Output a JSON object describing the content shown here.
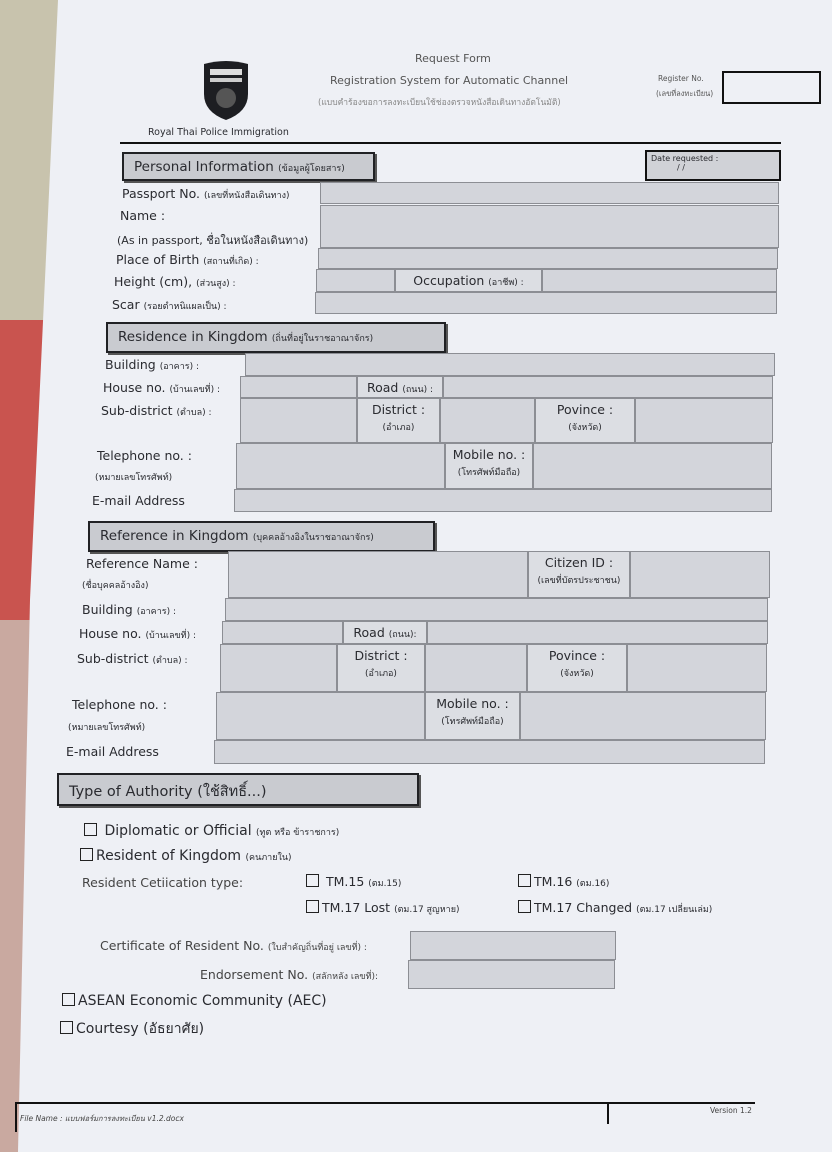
{
  "header": {
    "agency": "Royal Thai Police  Immigration",
    "title": "Request Form",
    "subtitle": "Registration System for Automatic Channel",
    "subtitle_th": "(แบบคำร้องขอการลงทะเบียนใช้ช่องตรวจหนังสือเดินทางอัตโนมัติ)",
    "register_no_label": "Register No.",
    "register_no_label_th": "(เลขที่ลงทะเบียน)",
    "logo_text": "ROYAL THAI POLICE IMMIGRATION"
  },
  "personal": {
    "title": "Personal  Information",
    "title_th": "(ข้อมูลผู้โดยสาร)",
    "date_requested": "Date requested :",
    "date_sep": "/     /",
    "passport": "Passport  No.",
    "passport_th": "(เลขที่หนังสือเดินทาง)",
    "name": "Name :",
    "as_in_passport": "(As in passport, ชื่อในหนังสือเดินทาง)",
    "place_of_birth": "Place of Birth",
    "place_of_birth_th": "(สถานที่เกิด) :",
    "height": "Height (cm),",
    "height_th": "(ส่วนสูง) :",
    "occupation": "Occupation",
    "occupation_th": "(อาชีพ) :",
    "scar": "Scar",
    "scar_th": "(รอยตำหนิแผลเป็น) :"
  },
  "residence": {
    "title": "Residence  in  Kingdom",
    "title_th": "(ถิ่นที่อยู่ในราชอาณาจักร)",
    "building": "Building",
    "building_th": "(อาคาร) :",
    "house": "House no.",
    "house_th": "(บ้านเลขที่) :",
    "road": "Road",
    "road_th": "(ถนน) :",
    "subdistrict": "Sub-district",
    "subdistrict_th": "(ตำบล) :",
    "district": "District :",
    "district_th": "(อำเภอ)",
    "province": "Povince :",
    "province_th": "(จังหวัด)",
    "telephone": "Telephone no. :",
    "telephone_th": "(หมายเลขโทรศัพท์)",
    "mobile": "Mobile no. :",
    "mobile_th": "(โทรศัพท์มือถือ)",
    "email": "E-mail Address"
  },
  "reference": {
    "title": "Reference in Kingdom",
    "title_th": "(บุคคลอ้างอิงในราชอาณาจักร)",
    "name": "Reference  Name :",
    "name_th": "(ชื่อบุคคลอ้างอิง)",
    "citizen_id": "Citizen ID :",
    "citizen_id_th": "(เลขที่บัตรประชาชน)",
    "building": "Building",
    "building_th": "(อาคาร) :",
    "house": "House no.",
    "house_th": "(บ้านเลขที่) :",
    "road": "Road",
    "road_th": "(ถนน):",
    "subdistrict": "Sub-district",
    "subdistrict_th": "(ตำบล) :",
    "district": "District :",
    "district_th": "(อำเภอ)",
    "province": "Povince :",
    "province_th": "(จังหวัด)",
    "telephone": "Telephone no. :",
    "telephone_th": "(หมายเลขโทรศัพท์)",
    "mobile": "Mobile no. :",
    "mobile_th": "(โทรศัพท์มือถือ)",
    "email": "E-mail Address"
  },
  "authority": {
    "title": "Type of Authority (ใช้สิทธิ์...)",
    "diplomatic": "Diplomatic or Official",
    "diplomatic_th": "(ทูต หรือ ข้าราชการ)",
    "resident": "Resident of Kingdom",
    "resident_th": "(คนภายใน)",
    "cert_type": "Resident Cetiication type:",
    "tm15": "TM.15",
    "tm15_th": "(ตม.15)",
    "tm16": "TM.16",
    "tm16_th": "(ตม.16)",
    "tm17lost": "TM.17 Lost",
    "tm17lost_th": "(ตม.17 สูญหาย)",
    "tm17changed": "TM.17 Changed",
    "tm17changed_th": "(ตม.17 เปลี่ยนเล่ม)",
    "cert_no": "Certificate of Resident No.",
    "cert_no_th": "(ใบสำคัญถิ่นที่อยู่ เลขที่) :",
    "endorse": "Endorsement No.",
    "endorse_th": "(สลักหลัง เลขที่):",
    "aec": "ASEAN Economic Community (AEC)",
    "courtesy": "Courtesy (อัธยาศัย)"
  },
  "footer": {
    "file_name": "File Name : แบบฟอร์มการลงทะเบียน v1.2.docx",
    "version": "Version 1.2"
  }
}
